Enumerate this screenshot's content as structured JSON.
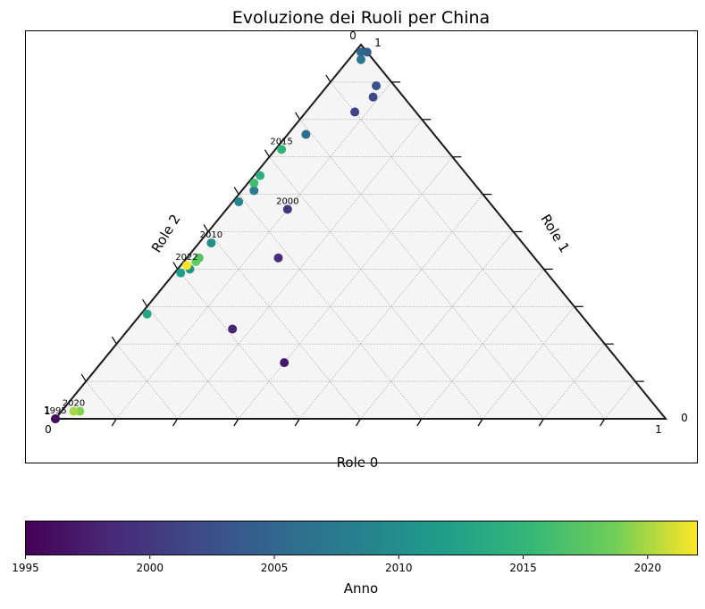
{
  "chart_data": {
    "type": "scatter",
    "title": "Evoluzione dei Ruoli per China",
    "axis_labels": {
      "bottom": "Role 0",
      "right": "Role 1",
      "left": "Role 2"
    },
    "corner_labels": {
      "top_left": "0",
      "top_right": "1",
      "left_upper": "1",
      "left_lower": "0",
      "right_upper": "0",
      "right_lower": "1"
    },
    "colorbar": {
      "label": "Anno",
      "min": 1995,
      "max": 2022,
      "ticks": [
        "1995",
        "2000",
        "2005",
        "2010",
        "2015",
        "2020"
      ],
      "colormap": "viridis"
    },
    "grid": true,
    "background": "#f5f5f5",
    "points": [
      {
        "year": 1995,
        "role1": 0.0,
        "role2": 0.0,
        "label": "1995"
      },
      {
        "year": 1996,
        "role1": 0.0,
        "role2": 0.0
      },
      {
        "year": 1997,
        "role1": 0.3,
        "role2": 0.15
      },
      {
        "year": 1998,
        "role1": 0.17,
        "role2": 0.24
      },
      {
        "year": 1999,
        "role1": 0.15,
        "role2": 0.43
      },
      {
        "year": 2000,
        "role1": 0.1,
        "role2": 0.56,
        "label": "2000"
      },
      {
        "year": 2001,
        "role1": 0.08,
        "role2": 0.82
      },
      {
        "year": 2002,
        "role1": 0.09,
        "role2": 0.86
      },
      {
        "year": 2003,
        "role1": 0.08,
        "role2": 0.89
      },
      {
        "year": 2004,
        "role1": 0.02,
        "role2": 0.98
      },
      {
        "year": 2005,
        "role1": 0.01,
        "role2": 0.98
      },
      {
        "year": 2006,
        "role1": 0.03,
        "role2": 0.76
      },
      {
        "year": 2007,
        "role1": 0.02,
        "role2": 0.96
      },
      {
        "year": 2008,
        "role1": 0.02,
        "role2": 0.61
      },
      {
        "year": 2009,
        "role1": 0.01,
        "role2": 0.58
      },
      {
        "year": 2010,
        "role1": 0.02,
        "role2": 0.47,
        "label": "2010"
      },
      {
        "year": 2011,
        "role1": 0.02,
        "role2": 0.4
      },
      {
        "year": 2012,
        "role1": 0.01,
        "role2": 0.39
      },
      {
        "year": 2013,
        "role1": 0.01,
        "role2": 0.28
      },
      {
        "year": 2014,
        "role1": 0.01,
        "role2": 0.65
      },
      {
        "year": 2015,
        "role1": 0.01,
        "role2": 0.72,
        "label": "2015"
      },
      {
        "year": 2016,
        "role1": 0.01,
        "role2": 0.63
      },
      {
        "year": 2017,
        "role1": 0.02,
        "role2": 0.43
      },
      {
        "year": 2018,
        "role1": 0.02,
        "role2": 0.42
      },
      {
        "year": 2019,
        "role1": 0.03,
        "role2": 0.02
      },
      {
        "year": 2020,
        "role1": 0.02,
        "role2": 0.02,
        "label": "2020"
      },
      {
        "year": 2022,
        "role1": 0.01,
        "role2": 0.41,
        "label": "2022"
      }
    ]
  }
}
